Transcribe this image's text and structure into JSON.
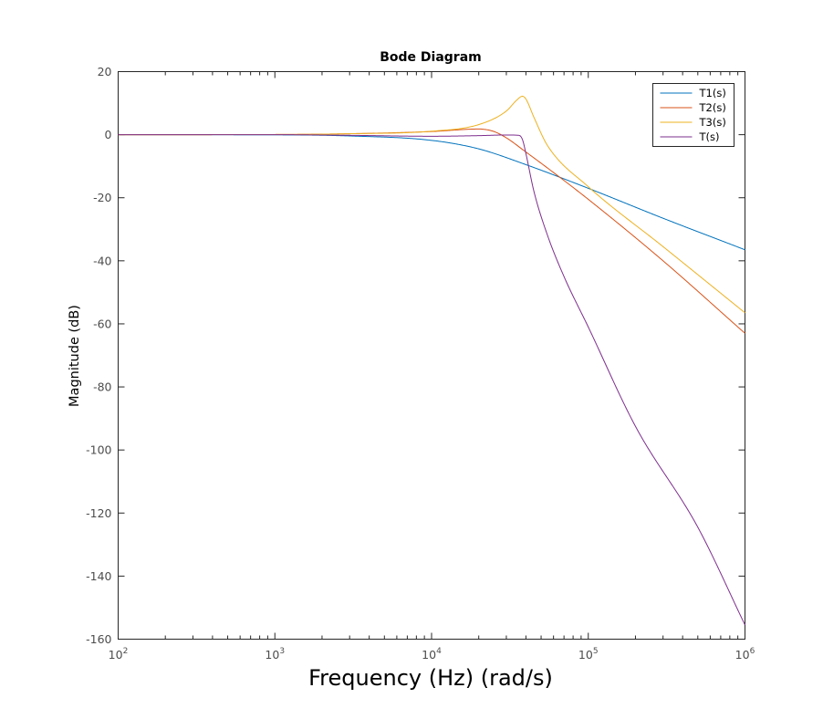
{
  "chart_data": {
    "type": "line",
    "title": "Bode Diagram",
    "xlabel": "Frequency (Hz)  (rad/s)",
    "ylabel": "Magnitude (dB)",
    "xscale": "log",
    "xlim": [
      100,
      1000000
    ],
    "ylim": [
      -160,
      20
    ],
    "x_ticks": [
      {
        "base": "10",
        "exp": "2"
      },
      {
        "base": "10",
        "exp": "3"
      },
      {
        "base": "10",
        "exp": "4"
      },
      {
        "base": "10",
        "exp": "5"
      },
      {
        "base": "10",
        "exp": "6"
      }
    ],
    "y_ticks": [
      "20",
      "0",
      "-20",
      "-40",
      "-60",
      "-80",
      "-100",
      "-120",
      "-140",
      "-160"
    ],
    "grid": false,
    "legend_position": "top-right",
    "series": [
      {
        "name": "T1(s)",
        "color": "#0072BD",
        "x": [
          100,
          1000,
          3000,
          10000,
          20000,
          40000,
          100000,
          300000,
          1000000
        ],
        "values": [
          0,
          -0.05,
          -0.4,
          -1.8,
          -4.5,
          -9.5,
          -17,
          -26.5,
          -36.5
        ]
      },
      {
        "name": "T2(s)",
        "color": "#D95319",
        "x": [
          100,
          1000,
          3000,
          10000,
          20000,
          25000,
          30000,
          40000,
          60000,
          100000,
          300000,
          1000000
        ],
        "values": [
          0,
          0.05,
          0.3,
          1.0,
          1.8,
          1.0,
          -1.0,
          -5.5,
          -12,
          -20.5,
          -40,
          -63
        ]
      },
      {
        "name": "T3(s)",
        "color": "#EDB120",
        "x": [
          100,
          1000,
          3000,
          10000,
          20000,
          30000,
          35000,
          38000,
          40000,
          45000,
          55000,
          100000,
          300000,
          1000000
        ],
        "values": [
          0,
          0.05,
          0.3,
          1.1,
          3.2,
          7.5,
          11,
          12.2,
          11.3,
          5.5,
          -3.5,
          -16.5,
          -35.5,
          -56.5
        ]
      },
      {
        "name": "T(s)",
        "color": "#7E2F8E",
        "x": [
          100,
          1000,
          3000,
          10000,
          20000,
          30000,
          36000,
          38000,
          40000,
          45000,
          55000,
          70000,
          100000,
          200000,
          500000,
          1000000
        ],
        "values": [
          0,
          0,
          -0.2,
          -0.5,
          -0.3,
          -0.1,
          -0.2,
          -1.5,
          -6,
          -18,
          -32,
          -45,
          -61,
          -92.5,
          -124.5,
          -155.5
        ]
      }
    ]
  }
}
